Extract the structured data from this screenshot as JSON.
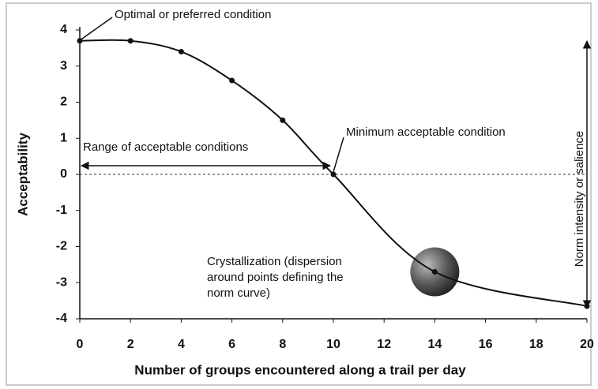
{
  "chart_data": {
    "type": "line",
    "xlabel": "Number of groups encountered along a trail per day",
    "ylabel": "Acceptability",
    "x": [
      0,
      2,
      4,
      6,
      8,
      10,
      14,
      20
    ],
    "values": [
      3.7,
      3.7,
      3.4,
      2.6,
      1.5,
      0,
      -2.7,
      -3.65
    ],
    "color": "#111111",
    "xlim": [
      0,
      20
    ],
    "xticks": [
      0,
      2,
      4,
      6,
      8,
      10,
      12,
      14,
      16,
      18,
      20
    ],
    "ylim": [
      -4,
      4
    ],
    "yticks": [
      -4,
      -3,
      -2,
      -1,
      0,
      1,
      2,
      3,
      4
    ],
    "annotations": {
      "optimal": "Optimal or preferred condition",
      "range": "Range of acceptable conditions",
      "minimum": "Minimum acceptable condition",
      "crystallization": [
        "Crystallization (dispersion",
        "around points defining the",
        "norm curve)"
      ],
      "intensity": "Norm intensity or salience"
    }
  }
}
